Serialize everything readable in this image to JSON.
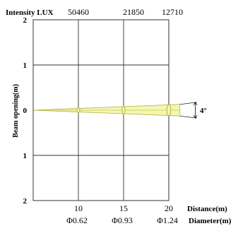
{
  "chart_data": {
    "type": "line",
    "title": "",
    "intensity_label": "Intensity LUX",
    "intensity_values": [
      "50460",
      "21850",
      "12710"
    ],
    "x_ticks": [
      10,
      15,
      20
    ],
    "x_tick_labels": [
      "10",
      "15",
      "20"
    ],
    "xlim": [
      5,
      20
    ],
    "xlabel": "Distance(m)",
    "diameter_label": "Diameter(m)",
    "diameter_values": [
      "Φ0.62",
      "Φ0.93",
      "Φ1.24"
    ],
    "y_ticks": [
      2,
      1,
      0,
      -1,
      -2
    ],
    "y_tick_labels": [
      "2",
      "1",
      "0",
      "1",
      "2"
    ],
    "ylim": [
      -2,
      2
    ],
    "ylabel": "Beam opening(m)",
    "beam_angle_label": "4°",
    "series": [
      {
        "x": [
          5,
          10,
          15,
          20
        ],
        "half_width": [
          0,
          0.0625,
          0.093,
          0.124
        ]
      }
    ],
    "grid": true,
    "colors": {
      "beam_fill": "#f5f5b4",
      "beam_stroke": "#b4b43c",
      "axis": "#333333"
    }
  }
}
